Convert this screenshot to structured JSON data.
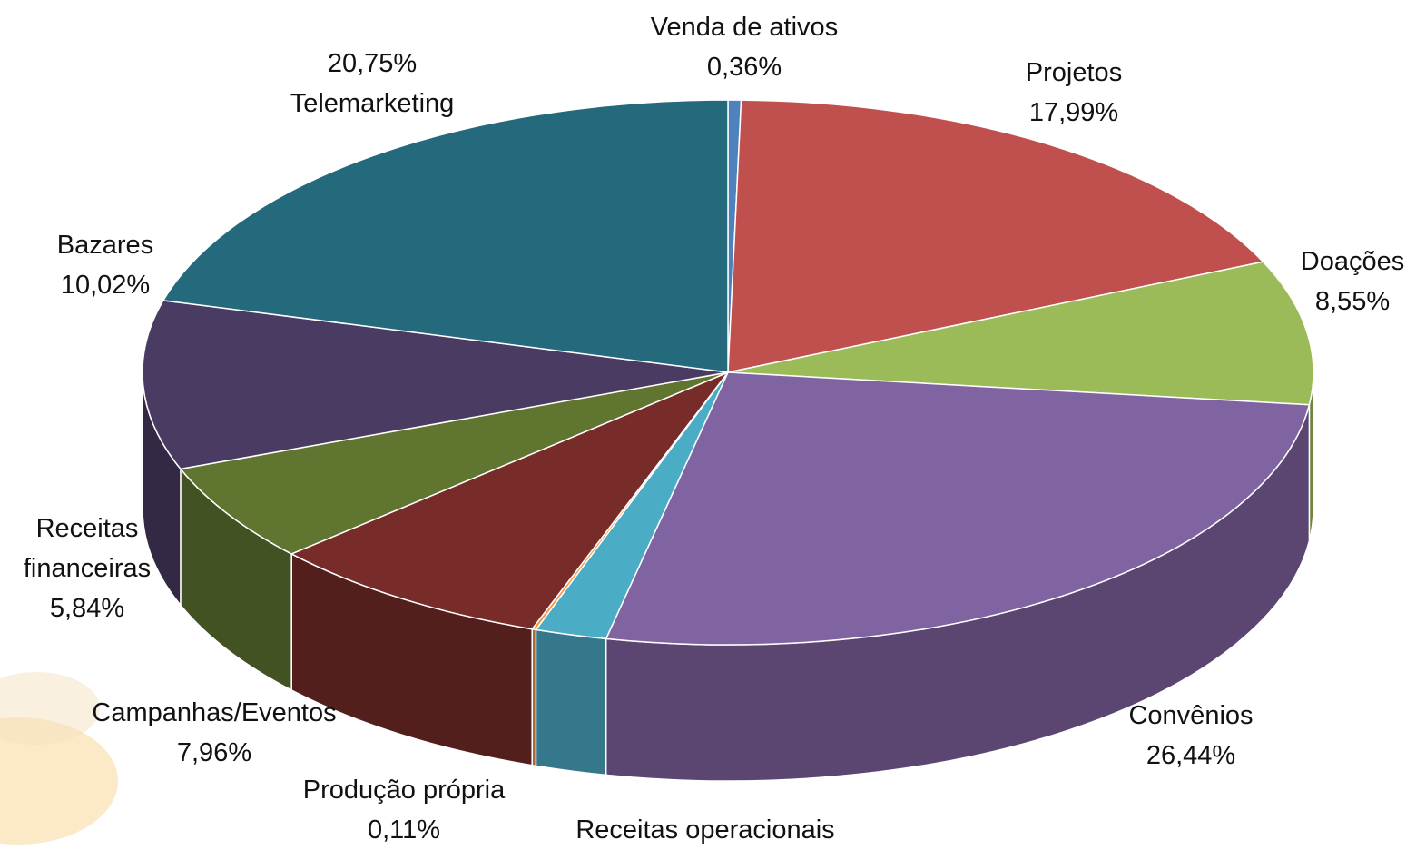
{
  "chart_data": {
    "type": "pie3d",
    "categories": [
      "Venda de ativos",
      "Projetos",
      "Doações",
      "Convênios",
      "Receitas operacionais",
      "Produção própria",
      "Campanhas/Eventos",
      "Receitas financeiras",
      "Bazares",
      "Telemarketing"
    ],
    "values": [
      0.36,
      17.99,
      8.55,
      26.44,
      1.98,
      0.11,
      7.96,
      5.84,
      10.02,
      20.75
    ],
    "value_labels": [
      "0,36%",
      "17,99%",
      "8,55%",
      "26,44%",
      null,
      "0,11%",
      "7,96%",
      "5,84%",
      "10,02%",
      "20,75%"
    ],
    "colors": [
      "#4f81bd",
      "#c0504d",
      "#9bbb59",
      "#8064a2",
      "#4bacc6",
      "#f79646",
      "#772c2a",
      "#5f7530",
      "#4a3b62",
      "#256a7c"
    ]
  }
}
